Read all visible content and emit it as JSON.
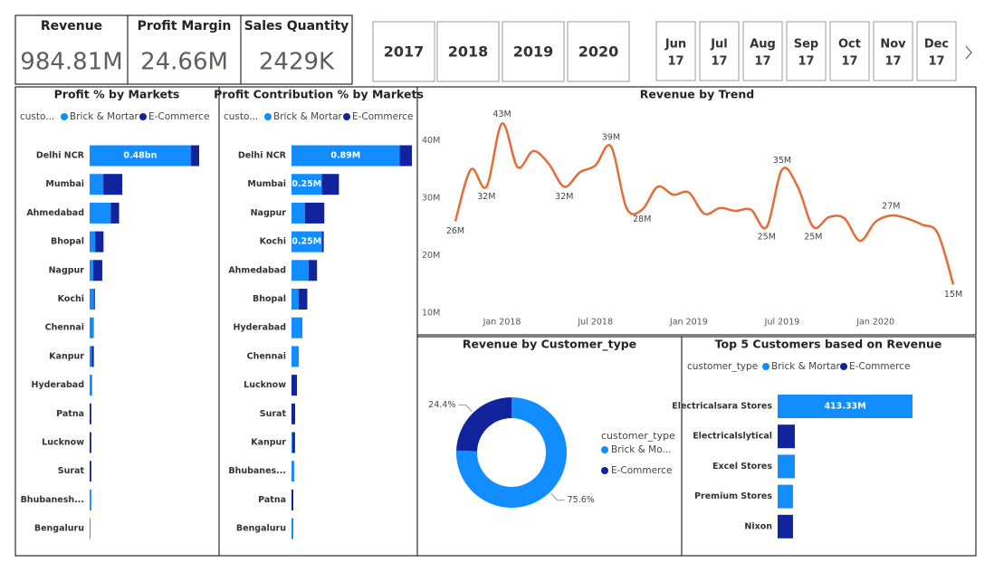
{
  "kpis": [
    {
      "label": "Revenue",
      "value": "984.81M"
    },
    {
      "label": "Profit Margin",
      "value": "24.66M"
    },
    {
      "label": "Sales Quantity",
      "value": "2429K"
    }
  ],
  "year_slicer": [
    "2017",
    "2018",
    "2019",
    "2020"
  ],
  "month_slicer": [
    {
      "month": "Jun",
      "year": "17"
    },
    {
      "month": "Jul",
      "year": "17"
    },
    {
      "month": "Aug",
      "year": "17"
    },
    {
      "month": "Sep",
      "year": "17"
    },
    {
      "month": "Oct",
      "year": "17"
    },
    {
      "month": "Nov",
      "year": "17"
    },
    {
      "month": "Dec",
      "year": "17"
    }
  ],
  "chart_data": [
    {
      "type": "bar",
      "orientation": "horizontal",
      "stacked": true,
      "title": "Profit % by Markets",
      "legend_title": "custo...",
      "categories": [
        "Delhi NCR",
        "Mumbai",
        "Ahmedabad",
        "Bhopal",
        "Nagpur",
        "Kochi",
        "Chennai",
        "Kanpur",
        "Hyderabad",
        "Patna",
        "Lucknow",
        "Surat",
        "Bhubanesh...",
        "Bengaluru"
      ],
      "series": [
        {
          "name": "Brick & Mortar",
          "color": "#118DFF",
          "values": [
            0.48,
            0.065,
            0.1,
            0.026,
            0.017,
            0.02,
            0.02,
            0.01,
            0.012,
            0,
            0,
            0,
            0.008,
            0.004
          ],
          "value_labels": [
            "0.48bn",
            null,
            null,
            null,
            null,
            null,
            null,
            null,
            null,
            null,
            null,
            null,
            null,
            null
          ]
        },
        {
          "name": "E-Commerce",
          "color": "#12239E",
          "values": [
            0.04,
            0.09,
            0.04,
            0.04,
            0.043,
            0.005,
            0,
            0.01,
            0,
            0.008,
            0.008,
            0.008,
            0,
            0
          ]
        }
      ]
    },
    {
      "type": "bar",
      "orientation": "horizontal",
      "stacked": true,
      "title": "Profit Contribution % by Markets",
      "legend_title": "custo...",
      "categories": [
        "Delhi NCR",
        "Mumbai",
        "Nagpur",
        "Kochi",
        "Ahmedabad",
        "Bhopal",
        "Hyderabad",
        "Chennai",
        "Lucknow",
        "Surat",
        "Kanpur",
        "Bhubanes...",
        "Patna",
        "Bengaluru"
      ],
      "series": [
        {
          "name": "Brick & Mortar",
          "color": "#118DFF",
          "values": [
            0.89,
            0.25,
            0.11,
            0.25,
            0.14,
            0.06,
            0.09,
            0.06,
            0,
            0,
            0.007,
            0.022,
            0,
            0.015
          ],
          "value_labels": [
            "0.89M",
            "0.25M",
            null,
            "0.25M",
            null,
            null,
            null,
            null,
            null,
            null,
            null,
            null,
            null,
            null
          ]
        },
        {
          "name": "E-Commerce",
          "color": "#12239E",
          "values": [
            0.1,
            0.14,
            0.16,
            0.015,
            0.07,
            0.07,
            0,
            0,
            0.045,
            0.03,
            0.022,
            0,
            0.015,
            0
          ]
        }
      ]
    },
    {
      "type": "line",
      "title": "Revenue by Trend",
      "grid": false,
      "x": [
        "2017-10",
        "2017-11",
        "2017-12",
        "2018-01",
        "2018-02",
        "2018-03",
        "2018-04",
        "2018-05",
        "2018-06",
        "2018-07",
        "2018-08",
        "2018-09",
        "2018-10",
        "2018-11",
        "2018-12",
        "2019-01",
        "2019-02",
        "2019-03",
        "2019-04",
        "2019-05",
        "2019-06",
        "2019-07",
        "2019-08",
        "2019-09",
        "2019-10",
        "2019-11",
        "2019-12",
        "2020-01",
        "2020-02",
        "2020-03",
        "2020-04",
        "2020-05",
        "2020-06"
      ],
      "series": [
        {
          "name": "Revenue",
          "color": "#E66C37",
          "values": [
            26,
            35,
            32,
            43,
            35.4,
            38.2,
            36,
            32,
            34.5,
            35.7,
            39,
            28.3,
            28,
            32,
            30.6,
            31,
            27.3,
            28.3,
            27.8,
            28,
            25,
            35,
            32,
            25,
            26.7,
            26.5,
            22.6,
            25.9,
            27,
            26.5,
            25.4,
            23.9,
            15
          ],
          "value_labels": [
            "26M",
            null,
            "32M",
            "43M",
            null,
            null,
            null,
            "32M",
            null,
            null,
            "39M",
            null,
            "28M",
            null,
            null,
            null,
            null,
            null,
            null,
            null,
            "25M",
            "35M",
            null,
            "25M",
            null,
            null,
            null,
            null,
            "27M",
            null,
            null,
            null,
            "15M"
          ]
        }
      ],
      "ylim": [
        8.6,
        44.8
      ],
      "yticks": [
        {
          "value": 10,
          "label": "10M"
        },
        {
          "value": 20,
          "label": "20M"
        },
        {
          "value": 30,
          "label": "30M"
        },
        {
          "value": 40,
          "label": "40M"
        }
      ],
      "xticks": [
        {
          "value": "2018-01",
          "label": "Jan 2018"
        },
        {
          "value": "2018-07",
          "label": "Jul 2018"
        },
        {
          "value": "2019-01",
          "label": "Jan 2019"
        },
        {
          "value": "2019-07",
          "label": "Jul 2019"
        },
        {
          "value": "2020-01",
          "label": "Jan 2020"
        }
      ]
    },
    {
      "type": "donut",
      "title": "Revenue by Customer_type",
      "legend_title": "customer_type",
      "categories": [
        "Brick & Mo...",
        "E-Commerce"
      ],
      "colors": [
        "#118DFF",
        "#12239E"
      ],
      "values": [
        75.6,
        24.4
      ],
      "value_labels": [
        "75.6%",
        "24.4%"
      ]
    },
    {
      "type": "bar",
      "orientation": "horizontal",
      "stacked": true,
      "title": "Top 5 Customers based on Revenue",
      "legend_title": "customer_type",
      "categories": [
        "Electricalsara Stores",
        "Electricalslytical",
        "Excel Stores",
        "Premium Stores",
        "Nixon"
      ],
      "series": [
        {
          "name": "Brick & Mortar",
          "color": "#118DFF",
          "values": [
            413.33,
            0,
            52.7,
            47,
            0
          ],
          "value_labels": [
            "413.33M",
            null,
            null,
            null,
            null
          ]
        },
        {
          "name": "E-Commerce",
          "color": "#12239E",
          "values": [
            0,
            52.7,
            0,
            0,
            47
          ]
        }
      ]
    }
  ]
}
